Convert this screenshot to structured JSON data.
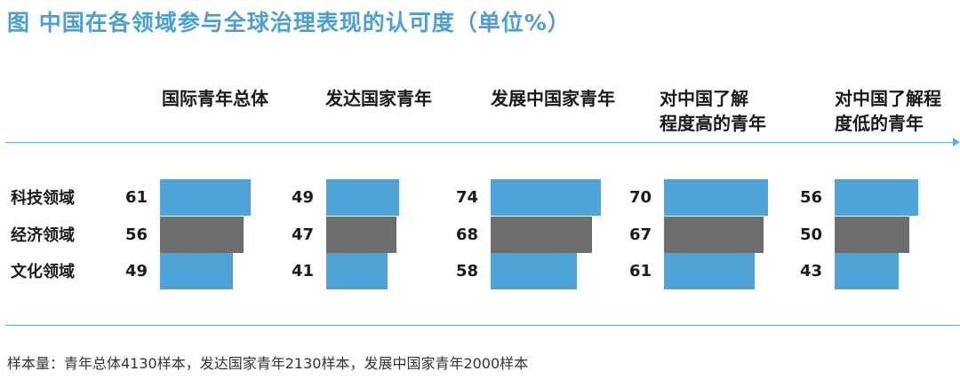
{
  "title": "图  中国在各领域参与全球治理表现的认可度（单位%）",
  "footnote": "样本量：青年总体4130样本，发达国家青年2130样本，发展中国家青年2000样本",
  "colors": {
    "accent": "#4a9fd6",
    "bar_blue": "#4ea3d8",
    "bar_gray": "#6d6d6d",
    "rule": "#66aee0"
  },
  "chart_data": {
    "type": "bar",
    "orientation": "horizontal",
    "title": "图  中国在各领域参与全球治理表现的认可度（单位%）",
    "unit": "%",
    "groups": [
      "国际青年总体",
      "发达国家青年",
      "发展中国家青年",
      "对中国了解程度高的青年",
      "对中国了解程度低的青年"
    ],
    "group_labels": [
      [
        "国际青年总体"
      ],
      [
        "发达国家青年"
      ],
      [
        "发展中国家青年"
      ],
      [
        "对中国了解",
        "程度高的青年"
      ],
      [
        "对中国了解程",
        "度低的青年"
      ]
    ],
    "categories": [
      "科技领域",
      "经济领域",
      "文化领域"
    ],
    "series": [
      {
        "group": "国际青年总体",
        "values": [
          61,
          56,
          49
        ]
      },
      {
        "group": "发达国家青年",
        "values": [
          49,
          47,
          41
        ]
      },
      {
        "group": "发展中国家青年",
        "values": [
          74,
          68,
          58
        ]
      },
      {
        "group": "对中国了解程度高的青年",
        "values": [
          70,
          67,
          61
        ]
      },
      {
        "group": "对中国了解程度低的青年",
        "values": [
          56,
          50,
          43
        ]
      }
    ]
  }
}
